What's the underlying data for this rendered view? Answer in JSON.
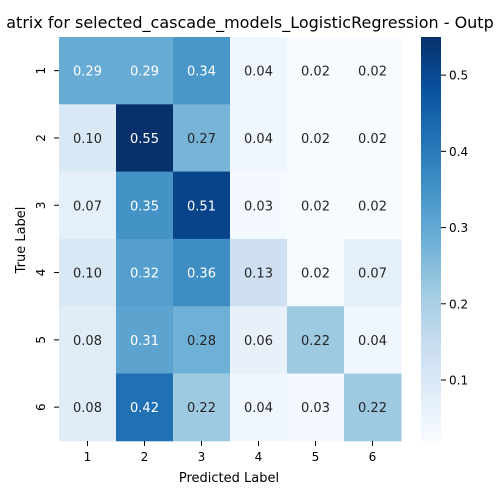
{
  "chart_data": {
    "type": "heatmap",
    "title": "atrix for selected_cascade_models_LogisticRegression - Outp",
    "xlabel": "Predicted Label",
    "ylabel": "True Label",
    "x_categories": [
      "1",
      "2",
      "3",
      "4",
      "5",
      "6"
    ],
    "y_categories": [
      "1",
      "2",
      "3",
      "4",
      "5",
      "6"
    ],
    "values": [
      [
        0.29,
        0.29,
        0.34,
        0.04,
        0.02,
        0.02
      ],
      [
        0.1,
        0.55,
        0.27,
        0.04,
        0.02,
        0.02
      ],
      [
        0.07,
        0.35,
        0.51,
        0.03,
        0.02,
        0.02
      ],
      [
        0.1,
        0.32,
        0.36,
        0.13,
        0.02,
        0.07
      ],
      [
        0.08,
        0.31,
        0.28,
        0.06,
        0.22,
        0.04
      ],
      [
        0.08,
        0.42,
        0.22,
        0.04,
        0.03,
        0.22
      ]
    ],
    "colormap": "Blues",
    "vmin": 0.02,
    "vmax": 0.55,
    "colorbar_ticks": [
      0.1,
      0.2,
      0.3,
      0.4,
      0.5
    ],
    "annotation_format": "0.00"
  }
}
